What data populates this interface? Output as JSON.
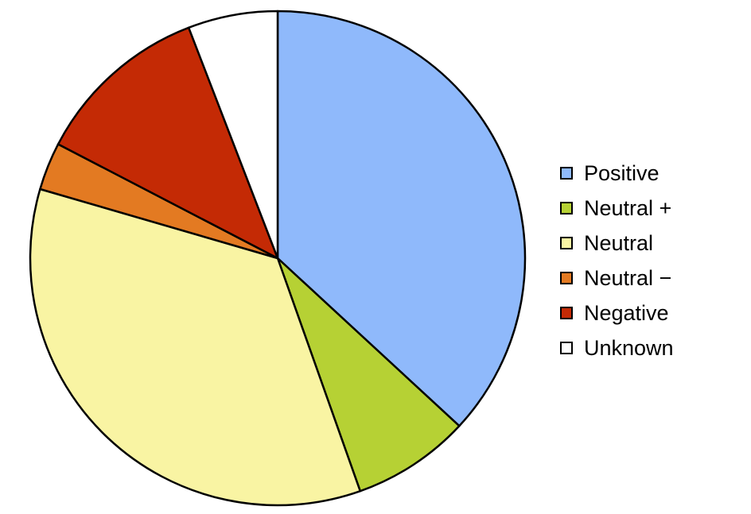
{
  "chart_data": {
    "type": "pie",
    "title": "",
    "start_angle_deg": 0,
    "direction": "clockwise",
    "legend_position": "right",
    "slices": [
      {
        "label": "Positive",
        "value": 37.8,
        "color": "#8fb9fb"
      },
      {
        "label": "Neutral +",
        "value": 7.9,
        "color": "#b6d134"
      },
      {
        "label": "Neutral",
        "value": 35.8,
        "color": "#f9f4a3"
      },
      {
        "label": "Neutral −",
        "value": 3.2,
        "color": "#e37a22"
      },
      {
        "label": "Negative",
        "value": 11.8,
        "color": "#c42a05"
      },
      {
        "label": "Unknown",
        "value": 6.0,
        "color": "#ffffff"
      }
    ]
  }
}
